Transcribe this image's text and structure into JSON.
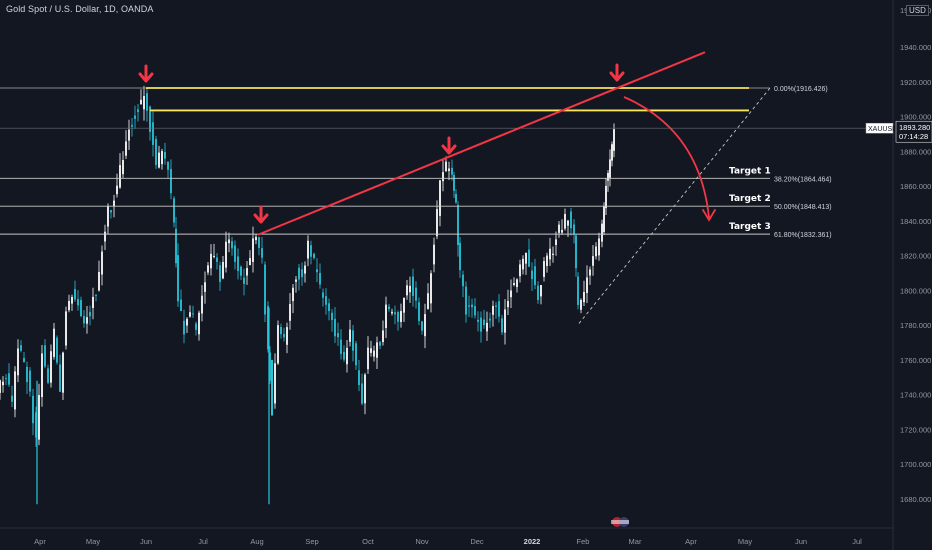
{
  "header": {
    "title": "Gold Spot / U.S. Dollar, 1D, OANDA",
    "currency": "USD"
  },
  "price_label": {
    "symbol": "XAUUSD",
    "price": "1893.280",
    "countdown": "07:14:28"
  },
  "colors": {
    "background": "#131722",
    "candle": "#26c6da",
    "candle_white": "#ffffff",
    "trendline": "#f23645",
    "fib_top": "#f7e55c",
    "fib_line": "#c8c8c8",
    "arrow": "#f23645"
  },
  "chart_data": {
    "type": "candlestick",
    "title": "Gold Spot / U.S. Dollar, 1D, OANDA",
    "y_axis": {
      "ylim": [
        1670,
        1960
      ],
      "ticks": [
        "1680.000",
        "1700.000",
        "1720.000",
        "1740.000",
        "1760.000",
        "1780.000",
        "1800.000",
        "1820.000",
        "1840.000",
        "1860.000",
        "1880.000",
        "1900.000",
        "1920.000",
        "1940.000"
      ]
    },
    "x_axis": {
      "ticks": [
        "Apr",
        "May",
        "Jun",
        "Jul",
        "Aug",
        "Sep",
        "Oct",
        "Nov",
        "Dec",
        "2022",
        "Feb",
        "Mar",
        "Apr",
        "May",
        "Jun",
        "Jul"
      ]
    },
    "fib_levels": [
      {
        "label": "0.00%(1916.426)",
        "value": 1916.426
      },
      {
        "label": "38.20%(1864.464)",
        "value": 1864.464,
        "target": "Target 1"
      },
      {
        "label": "50.00%(1848.413)",
        "value": 1848.413,
        "target": "Target 2"
      },
      {
        "label": "61.80%(1832.361)",
        "value": 1832.361,
        "target": "Target 3"
      }
    ],
    "resistance_lines": [
      1916.4,
      1903.5
    ],
    "last_price": 1893.28,
    "pivot_markers": [
      {
        "date": "Jun",
        "price": 1916
      },
      {
        "date": "Aug",
        "price": 1832
      },
      {
        "date": "Nov",
        "price": 1877
      },
      {
        "date": "Feb",
        "price": 1918
      }
    ],
    "candles_close_path": [
      [
        0,
        1745
      ],
      [
        6,
        1752
      ],
      [
        12,
        1732
      ],
      [
        18,
        1768
      ],
      [
        24,
        1760
      ],
      [
        30,
        1740
      ],
      [
        36,
        1712
      ],
      [
        42,
        1766
      ],
      [
        48,
        1750
      ],
      [
        54,
        1775
      ],
      [
        60,
        1745
      ],
      [
        66,
        1790
      ],
      [
        72,
        1800
      ],
      [
        78,
        1795
      ],
      [
        84,
        1782
      ],
      [
        90,
        1788
      ],
      [
        96,
        1800
      ],
      [
        102,
        1825
      ],
      [
        108,
        1845
      ],
      [
        114,
        1852
      ],
      [
        120,
        1870
      ],
      [
        126,
        1888
      ],
      [
        132,
        1898
      ],
      [
        138,
        1905
      ],
      [
        144,
        1910
      ],
      [
        150,
        1895
      ],
      [
        156,
        1872
      ],
      [
        162,
        1880
      ],
      [
        168,
        1868
      ],
      [
        174,
        1838
      ],
      [
        178,
        1795
      ],
      [
        184,
        1778
      ],
      [
        190,
        1790
      ],
      [
        196,
        1775
      ],
      [
        202,
        1798
      ],
      [
        208,
        1815
      ],
      [
        214,
        1822
      ],
      [
        220,
        1805
      ],
      [
        226,
        1828
      ],
      [
        232,
        1825
      ],
      [
        238,
        1812
      ],
      [
        244,
        1805
      ],
      [
        250,
        1820
      ],
      [
        256,
        1832
      ],
      [
        262,
        1815
      ],
      [
        268,
        1765
      ],
      [
        272,
        1735
      ],
      [
        278,
        1782
      ],
      [
        284,
        1770
      ],
      [
        290,
        1792
      ],
      [
        296,
        1810
      ],
      [
        302,
        1808
      ],
      [
        308,
        1825
      ],
      [
        314,
        1815
      ],
      [
        320,
        1800
      ],
      [
        326,
        1790
      ],
      [
        332,
        1780
      ],
      [
        338,
        1770
      ],
      [
        344,
        1760
      ],
      [
        350,
        1778
      ],
      [
        356,
        1755
      ],
      [
        362,
        1738
      ],
      [
        368,
        1765
      ],
      [
        374,
        1762
      ],
      [
        380,
        1772
      ],
      [
        386,
        1788
      ],
      [
        392,
        1790
      ],
      [
        398,
        1780
      ],
      [
        404,
        1795
      ],
      [
        410,
        1805
      ],
      [
        416,
        1792
      ],
      [
        422,
        1775
      ],
      [
        428,
        1796
      ],
      [
        434,
        1830
      ],
      [
        440,
        1860
      ],
      [
        446,
        1872
      ],
      [
        452,
        1865
      ],
      [
        456,
        1850
      ],
      [
        460,
        1808
      ],
      [
        466,
        1790
      ],
      [
        472,
        1788
      ],
      [
        478,
        1782
      ],
      [
        484,
        1778
      ],
      [
        490,
        1785
      ],
      [
        496,
        1790
      ],
      [
        502,
        1778
      ],
      [
        508,
        1795
      ],
      [
        514,
        1805
      ],
      [
        520,
        1812
      ],
      [
        526,
        1820
      ],
      [
        532,
        1810
      ],
      [
        538,
        1798
      ],
      [
        544,
        1815
      ],
      [
        550,
        1820
      ],
      [
        556,
        1830
      ],
      [
        562,
        1838
      ],
      [
        568,
        1842
      ],
      [
        574,
        1832
      ],
      [
        578,
        1790
      ],
      [
        584,
        1800
      ],
      [
        590,
        1812
      ],
      [
        596,
        1822
      ],
      [
        602,
        1835
      ],
      [
        606,
        1862
      ],
      [
        610,
        1872
      ],
      [
        614,
        1893
      ]
    ]
  }
}
